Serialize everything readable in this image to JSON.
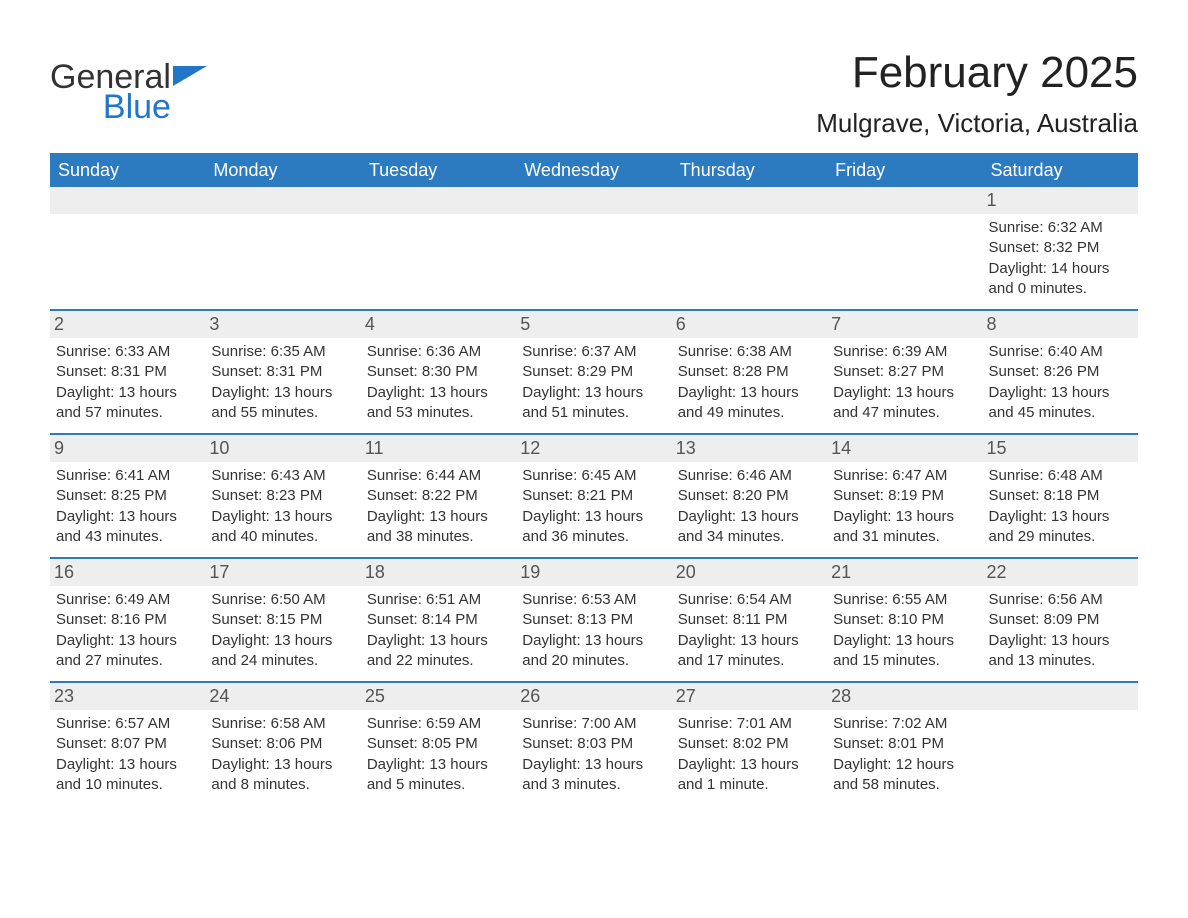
{
  "logo": {
    "text1": "General",
    "text2": "Blue",
    "icon_color": "#2176c7"
  },
  "title": "February 2025",
  "location": "Mulgrave, Victoria, Australia",
  "colors": {
    "header_bg": "#2c7ac0",
    "header_text": "#ffffff",
    "daynum_bg": "#eeeeee",
    "week_border": "#2c7ac0",
    "body_text": "#333333"
  },
  "day_labels": [
    "Sunday",
    "Monday",
    "Tuesday",
    "Wednesday",
    "Thursday",
    "Friday",
    "Saturday"
  ],
  "weeks": [
    [
      {
        "n": "",
        "sunrise": "",
        "sunset": "",
        "daylight": ""
      },
      {
        "n": "",
        "sunrise": "",
        "sunset": "",
        "daylight": ""
      },
      {
        "n": "",
        "sunrise": "",
        "sunset": "",
        "daylight": ""
      },
      {
        "n": "",
        "sunrise": "",
        "sunset": "",
        "daylight": ""
      },
      {
        "n": "",
        "sunrise": "",
        "sunset": "",
        "daylight": ""
      },
      {
        "n": "",
        "sunrise": "",
        "sunset": "",
        "daylight": ""
      },
      {
        "n": "1",
        "sunrise": "Sunrise: 6:32 AM",
        "sunset": "Sunset: 8:32 PM",
        "daylight": "Daylight: 14 hours and 0 minutes."
      }
    ],
    [
      {
        "n": "2",
        "sunrise": "Sunrise: 6:33 AM",
        "sunset": "Sunset: 8:31 PM",
        "daylight": "Daylight: 13 hours and 57 minutes."
      },
      {
        "n": "3",
        "sunrise": "Sunrise: 6:35 AM",
        "sunset": "Sunset: 8:31 PM",
        "daylight": "Daylight: 13 hours and 55 minutes."
      },
      {
        "n": "4",
        "sunrise": "Sunrise: 6:36 AM",
        "sunset": "Sunset: 8:30 PM",
        "daylight": "Daylight: 13 hours and 53 minutes."
      },
      {
        "n": "5",
        "sunrise": "Sunrise: 6:37 AM",
        "sunset": "Sunset: 8:29 PM",
        "daylight": "Daylight: 13 hours and 51 minutes."
      },
      {
        "n": "6",
        "sunrise": "Sunrise: 6:38 AM",
        "sunset": "Sunset: 8:28 PM",
        "daylight": "Daylight: 13 hours and 49 minutes."
      },
      {
        "n": "7",
        "sunrise": "Sunrise: 6:39 AM",
        "sunset": "Sunset: 8:27 PM",
        "daylight": "Daylight: 13 hours and 47 minutes."
      },
      {
        "n": "8",
        "sunrise": "Sunrise: 6:40 AM",
        "sunset": "Sunset: 8:26 PM",
        "daylight": "Daylight: 13 hours and 45 minutes."
      }
    ],
    [
      {
        "n": "9",
        "sunrise": "Sunrise: 6:41 AM",
        "sunset": "Sunset: 8:25 PM",
        "daylight": "Daylight: 13 hours and 43 minutes."
      },
      {
        "n": "10",
        "sunrise": "Sunrise: 6:43 AM",
        "sunset": "Sunset: 8:23 PM",
        "daylight": "Daylight: 13 hours and 40 minutes."
      },
      {
        "n": "11",
        "sunrise": "Sunrise: 6:44 AM",
        "sunset": "Sunset: 8:22 PM",
        "daylight": "Daylight: 13 hours and 38 minutes."
      },
      {
        "n": "12",
        "sunrise": "Sunrise: 6:45 AM",
        "sunset": "Sunset: 8:21 PM",
        "daylight": "Daylight: 13 hours and 36 minutes."
      },
      {
        "n": "13",
        "sunrise": "Sunrise: 6:46 AM",
        "sunset": "Sunset: 8:20 PM",
        "daylight": "Daylight: 13 hours and 34 minutes."
      },
      {
        "n": "14",
        "sunrise": "Sunrise: 6:47 AM",
        "sunset": "Sunset: 8:19 PM",
        "daylight": "Daylight: 13 hours and 31 minutes."
      },
      {
        "n": "15",
        "sunrise": "Sunrise: 6:48 AM",
        "sunset": "Sunset: 8:18 PM",
        "daylight": "Daylight: 13 hours and 29 minutes."
      }
    ],
    [
      {
        "n": "16",
        "sunrise": "Sunrise: 6:49 AM",
        "sunset": "Sunset: 8:16 PM",
        "daylight": "Daylight: 13 hours and 27 minutes."
      },
      {
        "n": "17",
        "sunrise": "Sunrise: 6:50 AM",
        "sunset": "Sunset: 8:15 PM",
        "daylight": "Daylight: 13 hours and 24 minutes."
      },
      {
        "n": "18",
        "sunrise": "Sunrise: 6:51 AM",
        "sunset": "Sunset: 8:14 PM",
        "daylight": "Daylight: 13 hours and 22 minutes."
      },
      {
        "n": "19",
        "sunrise": "Sunrise: 6:53 AM",
        "sunset": "Sunset: 8:13 PM",
        "daylight": "Daylight: 13 hours and 20 minutes."
      },
      {
        "n": "20",
        "sunrise": "Sunrise: 6:54 AM",
        "sunset": "Sunset: 8:11 PM",
        "daylight": "Daylight: 13 hours and 17 minutes."
      },
      {
        "n": "21",
        "sunrise": "Sunrise: 6:55 AM",
        "sunset": "Sunset: 8:10 PM",
        "daylight": "Daylight: 13 hours and 15 minutes."
      },
      {
        "n": "22",
        "sunrise": "Sunrise: 6:56 AM",
        "sunset": "Sunset: 8:09 PM",
        "daylight": "Daylight: 13 hours and 13 minutes."
      }
    ],
    [
      {
        "n": "23",
        "sunrise": "Sunrise: 6:57 AM",
        "sunset": "Sunset: 8:07 PM",
        "daylight": "Daylight: 13 hours and 10 minutes."
      },
      {
        "n": "24",
        "sunrise": "Sunrise: 6:58 AM",
        "sunset": "Sunset: 8:06 PM",
        "daylight": "Daylight: 13 hours and 8 minutes."
      },
      {
        "n": "25",
        "sunrise": "Sunrise: 6:59 AM",
        "sunset": "Sunset: 8:05 PM",
        "daylight": "Daylight: 13 hours and 5 minutes."
      },
      {
        "n": "26",
        "sunrise": "Sunrise: 7:00 AM",
        "sunset": "Sunset: 8:03 PM",
        "daylight": "Daylight: 13 hours and 3 minutes."
      },
      {
        "n": "27",
        "sunrise": "Sunrise: 7:01 AM",
        "sunset": "Sunset: 8:02 PM",
        "daylight": "Daylight: 13 hours and 1 minute."
      },
      {
        "n": "28",
        "sunrise": "Sunrise: 7:02 AM",
        "sunset": "Sunset: 8:01 PM",
        "daylight": "Daylight: 12 hours and 58 minutes."
      },
      {
        "n": "",
        "sunrise": "",
        "sunset": "",
        "daylight": ""
      }
    ]
  ]
}
